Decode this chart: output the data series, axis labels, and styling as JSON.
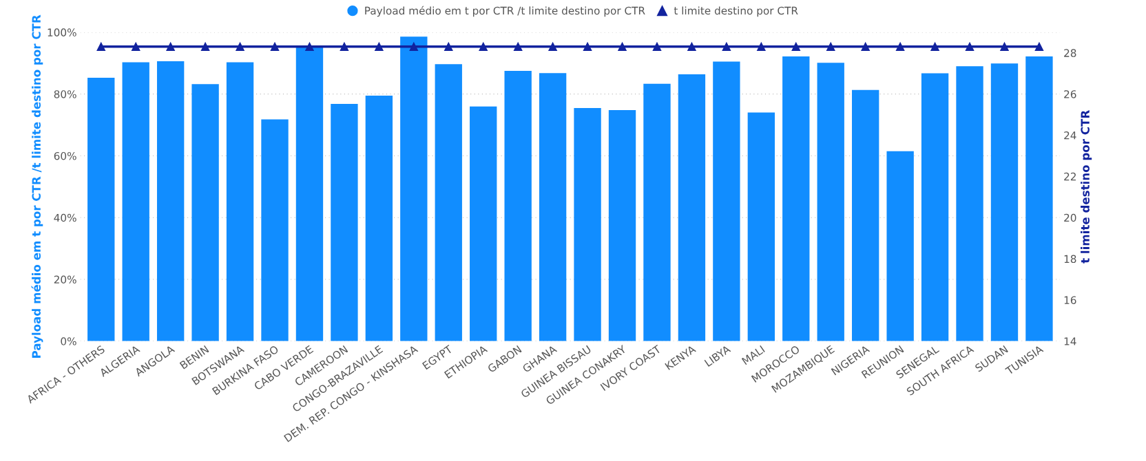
{
  "chart_data": {
    "type": "bar",
    "categories": [
      "AFRICA - OTHERS",
      "ALGERIA",
      "ANGOLA",
      "BENIN",
      "BOTSWANA",
      "BURKINA FASO",
      "CABO VERDE",
      "CAMEROON",
      "CONGO-BRAZAVILLE",
      "DEM. REP. CONGO - KINSHASA",
      "EGYPT",
      "ETHIOPIA",
      "GABON",
      "GHANA",
      "GUINEA BISSAU",
      "GUINEA CONAKRY",
      "IVORY COAST",
      "KENYA",
      "LIBYA",
      "MALI",
      "MOROCCO",
      "MOZAMBIQUE",
      "NIGERIA",
      "REUNION",
      "SENEGAL",
      "SOUTH AFRICA",
      "SUDAN",
      "TUNISIA"
    ],
    "series": [
      {
        "name": "Payload médio em t por CTR /t limite destino por CTR",
        "color": "#118dff",
        "values": [
          85.3,
          90.3,
          90.6,
          83.2,
          90.3,
          71.8,
          95.5,
          76.8,
          79.5,
          98.6,
          89.7,
          76.0,
          87.5,
          86.8,
          75.5,
          74.8,
          83.3,
          86.4,
          90.5,
          74.0,
          92.2,
          90.1,
          81.3,
          61.5,
          86.7,
          89.0,
          89.9,
          92.2
        ]
      },
      {
        "name": "t limite destino por CTR",
        "type": "line",
        "axis": "y2",
        "color": "#12239e",
        "marker": "triangle",
        "values": [
          28.3,
          28.3,
          28.3,
          28.3,
          28.3,
          28.3,
          28.3,
          28.3,
          28.3,
          28.3,
          28.3,
          28.3,
          28.3,
          28.3,
          28.3,
          28.3,
          28.3,
          28.3,
          28.3,
          28.3,
          28.3,
          28.3,
          28.3,
          28.3,
          28.3,
          28.3,
          28.3,
          28.3
        ]
      }
    ],
    "ylabel": "Payload médio em t por CTR /t limite destino por CTR",
    "y2label": "t limite destino por CTR",
    "ylim": [
      0,
      100
    ],
    "yticks": [
      {
        "value": 0,
        "label": "0%"
      },
      {
        "value": 20,
        "label": "20%"
      },
      {
        "value": 40,
        "label": "40%"
      },
      {
        "value": 60,
        "label": "60%"
      },
      {
        "value": 80,
        "label": "80%"
      },
      {
        "value": 100,
        "label": "100%"
      }
    ],
    "y2lim": [
      14,
      29
    ],
    "y2ticks": [
      14,
      16,
      18,
      20,
      22,
      24,
      26,
      28
    ],
    "grid": "y",
    "legend": "top"
  }
}
